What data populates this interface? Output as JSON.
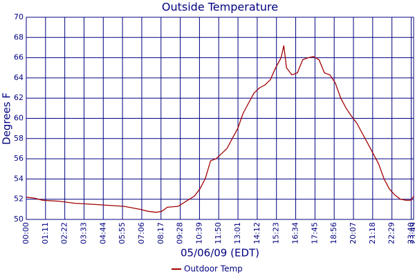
{
  "chart_data": {
    "type": "line",
    "title": "Outside Temperature",
    "y_label": "Degrees F",
    "x_label": "05/06/09 (EDT)",
    "xlim": [
      0,
      1429
    ],
    "ylim": [
      50,
      70
    ],
    "yticks": [
      50,
      52,
      54,
      56,
      58,
      60,
      62,
      64,
      66,
      68,
      70
    ],
    "xticks": [
      {
        "value": 0,
        "label": "00:00"
      },
      {
        "value": 71,
        "label": "01:11"
      },
      {
        "value": 142,
        "label": "02:22"
      },
      {
        "value": 213,
        "label": "03:33"
      },
      {
        "value": 284,
        "label": "04:44"
      },
      {
        "value": 355,
        "label": "05:55"
      },
      {
        "value": 426,
        "label": "07:06"
      },
      {
        "value": 497,
        "label": "08:17"
      },
      {
        "value": 568,
        "label": "09:28"
      },
      {
        "value": 639,
        "label": "10:39"
      },
      {
        "value": 710,
        "label": "11:50"
      },
      {
        "value": 781,
        "label": "13:01"
      },
      {
        "value": 852,
        "label": "14:12"
      },
      {
        "value": 923,
        "label": "15:23"
      },
      {
        "value": 994,
        "label": "16:34"
      },
      {
        "value": 1065,
        "label": "17:45"
      },
      {
        "value": 1136,
        "label": "18:56"
      },
      {
        "value": 1207,
        "label": "20:07"
      },
      {
        "value": 1278,
        "label": "21:18"
      },
      {
        "value": 1349,
        "label": "22:29"
      },
      {
        "value": 1420,
        "label": "23:40"
      },
      {
        "value": 1429,
        "label": "23:49"
      }
    ],
    "grid": true,
    "legend": "bottom",
    "x": [
      0,
      30,
      60,
      120,
      180,
      240,
      300,
      360,
      420,
      450,
      480,
      500,
      520,
      560,
      590,
      620,
      640,
      660,
      680,
      700,
      720,
      740,
      760,
      780,
      800,
      820,
      840,
      860,
      880,
      900,
      920,
      940,
      950,
      960,
      980,
      1000,
      1020,
      1040,
      1060,
      1080,
      1100,
      1120,
      1140,
      1160,
      1180,
      1200,
      1220,
      1240,
      1260,
      1280,
      1300,
      1320,
      1340,
      1360,
      1380,
      1400,
      1420,
      1429
    ],
    "series": [
      {
        "name": "Outdoor Temp",
        "color": "#a00000",
        "values": [
          52.2,
          52.1,
          51.9,
          51.8,
          51.6,
          51.5,
          51.4,
          51.3,
          51.0,
          50.8,
          50.7,
          50.8,
          51.2,
          51.3,
          51.8,
          52.3,
          53,
          54,
          55.8,
          56,
          56.5,
          57,
          58,
          59,
          60.5,
          61.5,
          62.5,
          63,
          63.3,
          63.8,
          65,
          66,
          67.2,
          65,
          64.3,
          64.5,
          65.8,
          66,
          66.1,
          65.8,
          64.5,
          64.3,
          63.5,
          62,
          61,
          60.2,
          59.5,
          58.5,
          57.5,
          56.5,
          55.5,
          54,
          53,
          52.4,
          52,
          51.9,
          51.9,
          52.3
        ]
      }
    ]
  }
}
